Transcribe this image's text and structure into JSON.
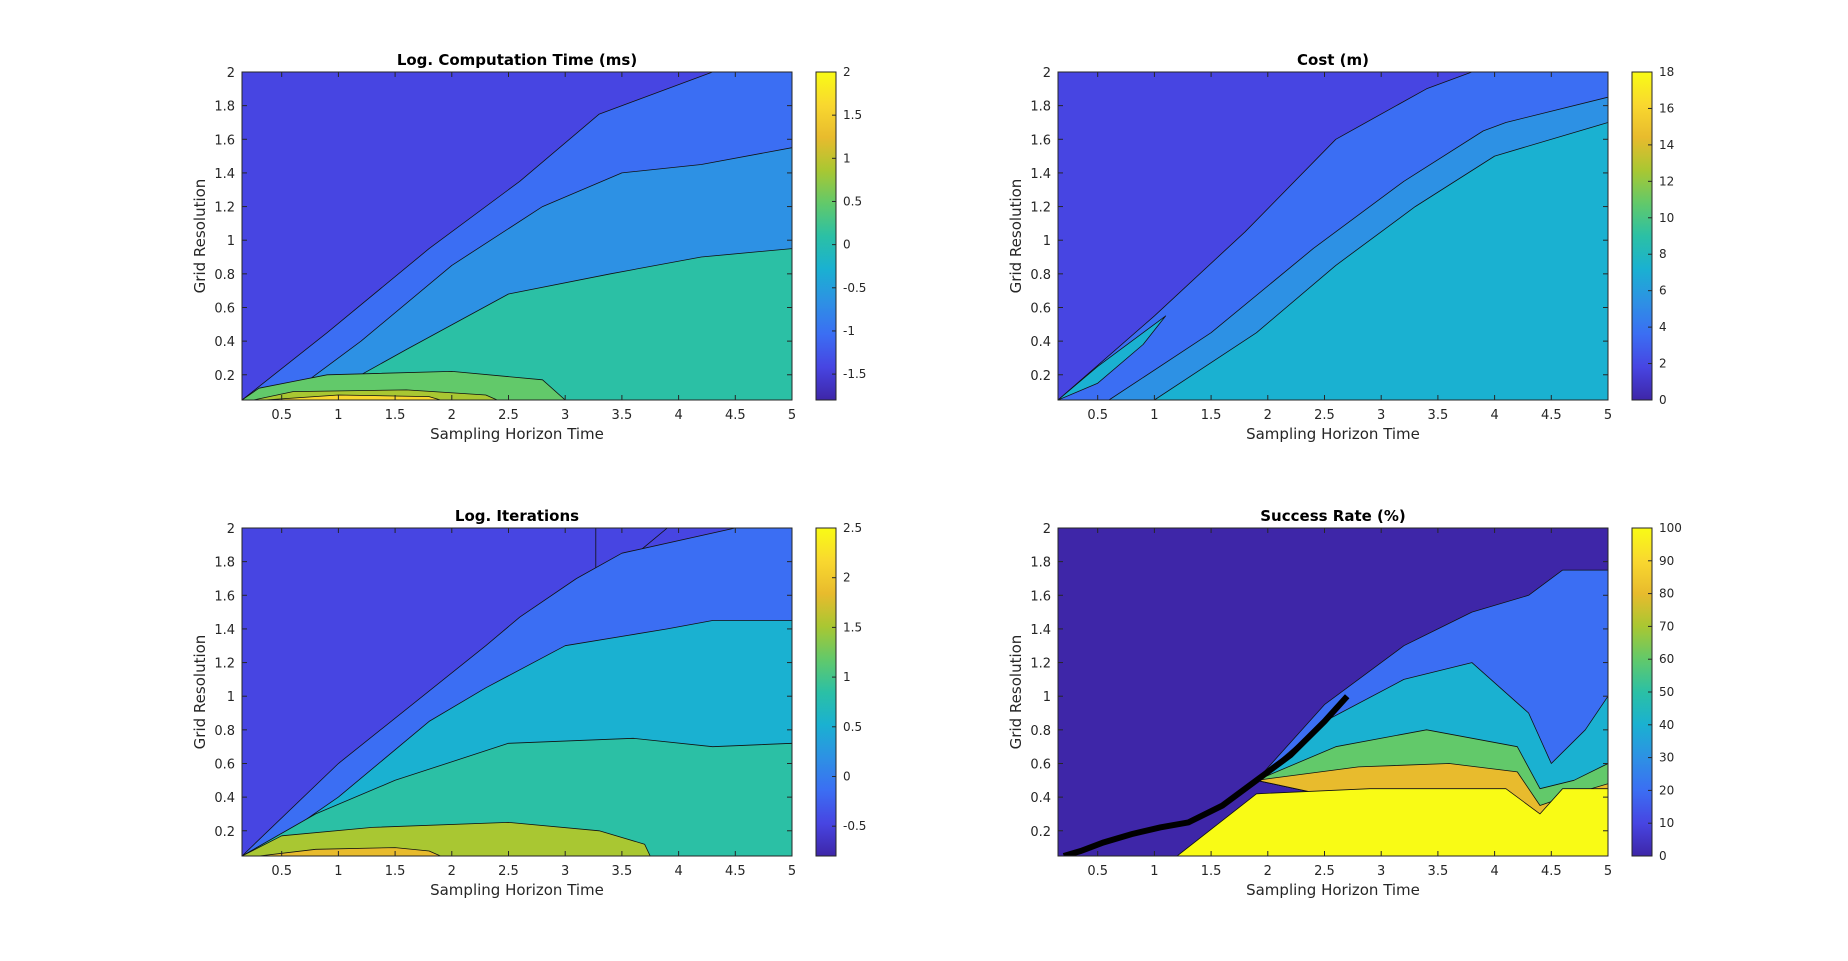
{
  "palette": [
    "#3e26a8",
    "#4745e2",
    "#3b6ef3",
    "#2d91e4",
    "#1ab1d1",
    "#2bc0a5",
    "#62c96a",
    "#a9c732",
    "#e8bb2d",
    "#f9d82f",
    "#f9fb15"
  ],
  "chart_data": [
    {
      "type": "contour",
      "title": "Log. Computation Time (ms)",
      "xlabel": "Sampling Horizon Time",
      "ylabel": "Grid Resolution",
      "xlim": [
        0.15,
        5
      ],
      "ylim": [
        0.05,
        2
      ],
      "xticks": [
        "0.5",
        "1",
        "1.5",
        "2",
        "2.5",
        "3",
        "3.5",
        "4",
        "4.5",
        "5"
      ],
      "yticks": [
        "0.2",
        "0.4",
        "0.6",
        "0.8",
        "1",
        "1.2",
        "1.4",
        "1.6",
        "1.8",
        "2"
      ],
      "colorbar": {
        "min": -1.8,
        "max": 2,
        "ticks": [
          "-1.5",
          "-1",
          "-0.5",
          "0",
          "0.5",
          "1",
          "1.5",
          "2"
        ]
      },
      "regions": [
        {
          "level": -1.5,
          "points": [
            [
              0.15,
              2
            ],
            [
              5,
              2
            ],
            [
              5,
              0.05
            ],
            [
              0.15,
              0.05
            ]
          ]
        },
        {
          "level": -1.0,
          "points": [
            [
              0.15,
              0.05
            ],
            [
              0.9,
              0.45
            ],
            [
              1.8,
              0.95
            ],
            [
              2.6,
              1.35
            ],
            [
              3.3,
              1.75
            ],
            [
              4.3,
              2.0
            ],
            [
              5,
              2.0
            ],
            [
              5,
              0.05
            ]
          ]
        },
        {
          "level": -0.5,
          "points": [
            [
              0.5,
              0.05
            ],
            [
              1.2,
              0.4
            ],
            [
              2.0,
              0.85
            ],
            [
              2.8,
              1.2
            ],
            [
              3.5,
              1.4
            ],
            [
              4.2,
              1.45
            ],
            [
              5,
              1.55
            ],
            [
              5,
              0.05
            ]
          ]
        },
        {
          "level": 0.0,
          "points": [
            [
              0.8,
              0.05
            ],
            [
              1.6,
              0.35
            ],
            [
              2.5,
              0.68
            ],
            [
              3.4,
              0.8
            ],
            [
              4.2,
              0.9
            ],
            [
              5,
              0.95
            ],
            [
              5,
              0.05
            ]
          ]
        },
        {
          "level": 0.5,
          "points": [
            [
              0.15,
              0.05
            ],
            [
              0.3,
              0.12
            ],
            [
              0.9,
              0.2
            ],
            [
              2.0,
              0.22
            ],
            [
              2.8,
              0.17
            ],
            [
              3.0,
              0.05
            ]
          ]
        },
        {
          "level": 1.0,
          "points": [
            [
              0.25,
              0.05
            ],
            [
              0.6,
              0.1
            ],
            [
              1.6,
              0.11
            ],
            [
              2.3,
              0.08
            ],
            [
              2.4,
              0.05
            ]
          ]
        },
        {
          "level": 1.5,
          "points": [
            [
              0.35,
              0.05
            ],
            [
              1.0,
              0.08
            ],
            [
              1.8,
              0.07
            ],
            [
              1.9,
              0.05
            ]
          ]
        }
      ]
    },
    {
      "type": "contour",
      "title": "Cost (m)",
      "xlabel": "Sampling Horizon Time",
      "ylabel": "Grid Resolution",
      "xlim": [
        0.15,
        5
      ],
      "ylim": [
        0.05,
        2
      ],
      "xticks": [
        "0.5",
        "1",
        "1.5",
        "2",
        "2.5",
        "3",
        "3.5",
        "4",
        "4.5",
        "5"
      ],
      "yticks": [
        "0.2",
        "0.4",
        "0.6",
        "0.8",
        "1",
        "1.2",
        "1.4",
        "1.6",
        "1.8",
        "2"
      ],
      "colorbar": {
        "min": 0,
        "max": 18,
        "ticks": [
          "0",
          "2",
          "4",
          "6",
          "8",
          "10",
          "12",
          "14",
          "16",
          "18"
        ]
      },
      "regions": [
        {
          "level": 1,
          "points": [
            [
              0.15,
              2
            ],
            [
              5,
              2
            ],
            [
              5,
              0.05
            ],
            [
              0.15,
              0.05
            ]
          ]
        },
        {
          "level": 3,
          "points": [
            [
              0.15,
              0.05
            ],
            [
              1.0,
              0.55
            ],
            [
              1.8,
              1.05
            ],
            [
              2.6,
              1.6
            ],
            [
              3.4,
              1.9
            ],
            [
              3.8,
              2.0
            ],
            [
              5,
              2.0
            ],
            [
              5,
              0.05
            ]
          ]
        },
        {
          "level": 5,
          "points": [
            [
              0.6,
              0.05
            ],
            [
              1.5,
              0.45
            ],
            [
              2.4,
              0.95
            ],
            [
              3.2,
              1.35
            ],
            [
              3.9,
              1.65
            ],
            [
              4.1,
              1.7
            ],
            [
              5,
              1.85
            ],
            [
              5,
              0.05
            ]
          ]
        },
        {
          "level": 7,
          "points": [
            [
              1.0,
              0.05
            ],
            [
              1.9,
              0.45
            ],
            [
              2.6,
              0.85
            ],
            [
              3.3,
              1.2
            ],
            [
              4.0,
              1.5
            ],
            [
              5,
              1.7
            ],
            [
              5,
              0.05
            ]
          ]
        },
        {
          "level": 8,
          "points": [
            [
              0.15,
              0.05
            ],
            [
              0.5,
              0.25
            ],
            [
              0.9,
              0.45
            ],
            [
              1.1,
              0.55
            ],
            [
              0.9,
              0.38
            ],
            [
              0.5,
              0.15
            ],
            [
              0.15,
              0.05
            ]
          ]
        }
      ]
    },
    {
      "type": "contour",
      "title": "Log. Iterations",
      "xlabel": "Sampling Horizon Time",
      "ylabel": "Grid Resolution",
      "xlim": [
        0.15,
        5
      ],
      "ylim": [
        0.05,
        2
      ],
      "xticks": [
        "0.5",
        "1",
        "1.5",
        "2",
        "2.5",
        "3",
        "3.5",
        "4",
        "4.5",
        "5"
      ],
      "yticks": [
        "0.2",
        "0.4",
        "0.6",
        "0.8",
        "1",
        "1.2",
        "1.4",
        "1.6",
        "1.8",
        "2"
      ],
      "colorbar": {
        "min": -0.8,
        "max": 2.5,
        "ticks": [
          "-0.5",
          "0",
          "0.5",
          "1",
          "1.5",
          "2",
          "2.5"
        ]
      },
      "regions": [
        {
          "level": -0.6,
          "points": [
            [
              0.15,
              2
            ],
            [
              5,
              2
            ],
            [
              5,
              0.05
            ],
            [
              0.15,
              0.05
            ]
          ]
        },
        {
          "level": -0.6,
          "points": [
            [
              3.27,
              2
            ],
            [
              3.9,
              2
            ],
            [
              3.4,
              1.72
            ],
            [
              3.3,
              1.7
            ],
            [
              3.27,
              1.7
            ]
          ]
        },
        {
          "level": 0.0,
          "points": [
            [
              0.15,
              0.05
            ],
            [
              1.0,
              0.6
            ],
            [
              2.3,
              1.3
            ],
            [
              2.6,
              1.47
            ],
            [
              3.1,
              1.7
            ],
            [
              3.5,
              1.85
            ],
            [
              4.5,
              2
            ],
            [
              5,
              2
            ],
            [
              5,
              0.05
            ]
          ]
        },
        {
          "level": 0.5,
          "points": [
            [
              0.25,
              0.05
            ],
            [
              1.0,
              0.4
            ],
            [
              1.8,
              0.85
            ],
            [
              2.3,
              1.05
            ],
            [
              3.0,
              1.3
            ],
            [
              3.9,
              1.4
            ],
            [
              4.3,
              1.45
            ],
            [
              5,
              1.45
            ],
            [
              5,
              0.05
            ]
          ]
        },
        {
          "level": 1.0,
          "points": [
            [
              0.15,
              0.05
            ],
            [
              0.8,
              0.3
            ],
            [
              1.5,
              0.5
            ],
            [
              2.5,
              0.72
            ],
            [
              3.6,
              0.75
            ],
            [
              4.3,
              0.7
            ],
            [
              5,
              0.72
            ],
            [
              5,
              0.05
            ]
          ]
        },
        {
          "level": 1.5,
          "points": [
            [
              0.15,
              0.05
            ],
            [
              0.5,
              0.17
            ],
            [
              1.3,
              0.22
            ],
            [
              2.5,
              0.25
            ],
            [
              3.3,
              0.2
            ],
            [
              3.7,
              0.12
            ],
            [
              3.75,
              0.05
            ]
          ]
        },
        {
          "level": 2.0,
          "points": [
            [
              0.3,
              0.05
            ],
            [
              0.8,
              0.09
            ],
            [
              1.5,
              0.1
            ],
            [
              1.8,
              0.08
            ],
            [
              1.9,
              0.05
            ]
          ]
        }
      ]
    },
    {
      "type": "contour",
      "title": "Success Rate (%)",
      "xlabel": "Sampling Horizon Time",
      "ylabel": "Grid Resolution",
      "xlim": [
        0.15,
        5
      ],
      "ylim": [
        0.05,
        2
      ],
      "xticks": [
        "0.5",
        "1",
        "1.5",
        "2",
        "2.5",
        "3",
        "3.5",
        "4",
        "4.5",
        "5"
      ],
      "yticks": [
        "0.2",
        "0.4",
        "0.6",
        "0.8",
        "1",
        "1.2",
        "1.4",
        "1.6",
        "1.8",
        "2"
      ],
      "colorbar": {
        "min": 0,
        "max": 100,
        "ticks": [
          "0",
          "10",
          "20",
          "30",
          "40",
          "50",
          "60",
          "70",
          "80",
          "90",
          "100"
        ]
      },
      "regions": [
        {
          "level": 0,
          "points": [
            [
              0.15,
              2
            ],
            [
              5,
              2
            ],
            [
              5,
              0.05
            ],
            [
              0.15,
              0.05
            ]
          ]
        },
        {
          "level": 15,
          "points": [
            [
              1.9,
              0.5
            ],
            [
              2.5,
              0.95
            ],
            [
              3.2,
              1.3
            ],
            [
              3.8,
              1.5
            ],
            [
              4.3,
              1.6
            ],
            [
              4.6,
              1.75
            ],
            [
              5,
              1.75
            ],
            [
              5,
              0.05
            ]
          ]
        },
        {
          "level": 35,
          "points": [
            [
              1.9,
              0.5
            ],
            [
              2.5,
              0.85
            ],
            [
              3.2,
              1.1
            ],
            [
              3.8,
              1.2
            ],
            [
              4.3,
              0.9
            ],
            [
              4.5,
              0.6
            ],
            [
              4.8,
              0.8
            ],
            [
              5,
              1.0
            ],
            [
              5,
              0.05
            ]
          ]
        },
        {
          "level": 55,
          "points": [
            [
              1.9,
              0.5
            ],
            [
              2.6,
              0.7
            ],
            [
              3.4,
              0.8
            ],
            [
              4.2,
              0.7
            ],
            [
              4.4,
              0.45
            ],
            [
              4.7,
              0.5
            ],
            [
              5,
              0.6
            ],
            [
              5,
              0.05
            ]
          ]
        },
        {
          "level": 75,
          "points": [
            [
              1.9,
              0.5
            ],
            [
              2.8,
              0.58
            ],
            [
              3.6,
              0.6
            ],
            [
              4.2,
              0.55
            ],
            [
              4.4,
              0.35
            ],
            [
              4.7,
              0.42
            ],
            [
              5,
              0.48
            ],
            [
              5,
              0.05
            ]
          ]
        },
        {
          "level": 100,
          "points": [
            [
              1.2,
              0.05
            ],
            [
              1.9,
              0.42
            ],
            [
              2.9,
              0.45
            ],
            [
              4.1,
              0.45
            ],
            [
              4.4,
              0.3
            ],
            [
              4.6,
              0.45
            ],
            [
              5,
              0.45
            ],
            [
              5,
              0.05
            ]
          ]
        }
      ],
      "boundary": [
        [
          0.2,
          0.05
        ],
        [
          0.35,
          0.08
        ],
        [
          0.55,
          0.13
        ],
        [
          0.8,
          0.18
        ],
        [
          1.05,
          0.22
        ],
        [
          1.3,
          0.25
        ],
        [
          1.6,
          0.35
        ],
        [
          1.9,
          0.5
        ],
        [
          2.2,
          0.65
        ],
        [
          2.5,
          0.85
        ],
        [
          2.7,
          1.0
        ]
      ]
    }
  ]
}
